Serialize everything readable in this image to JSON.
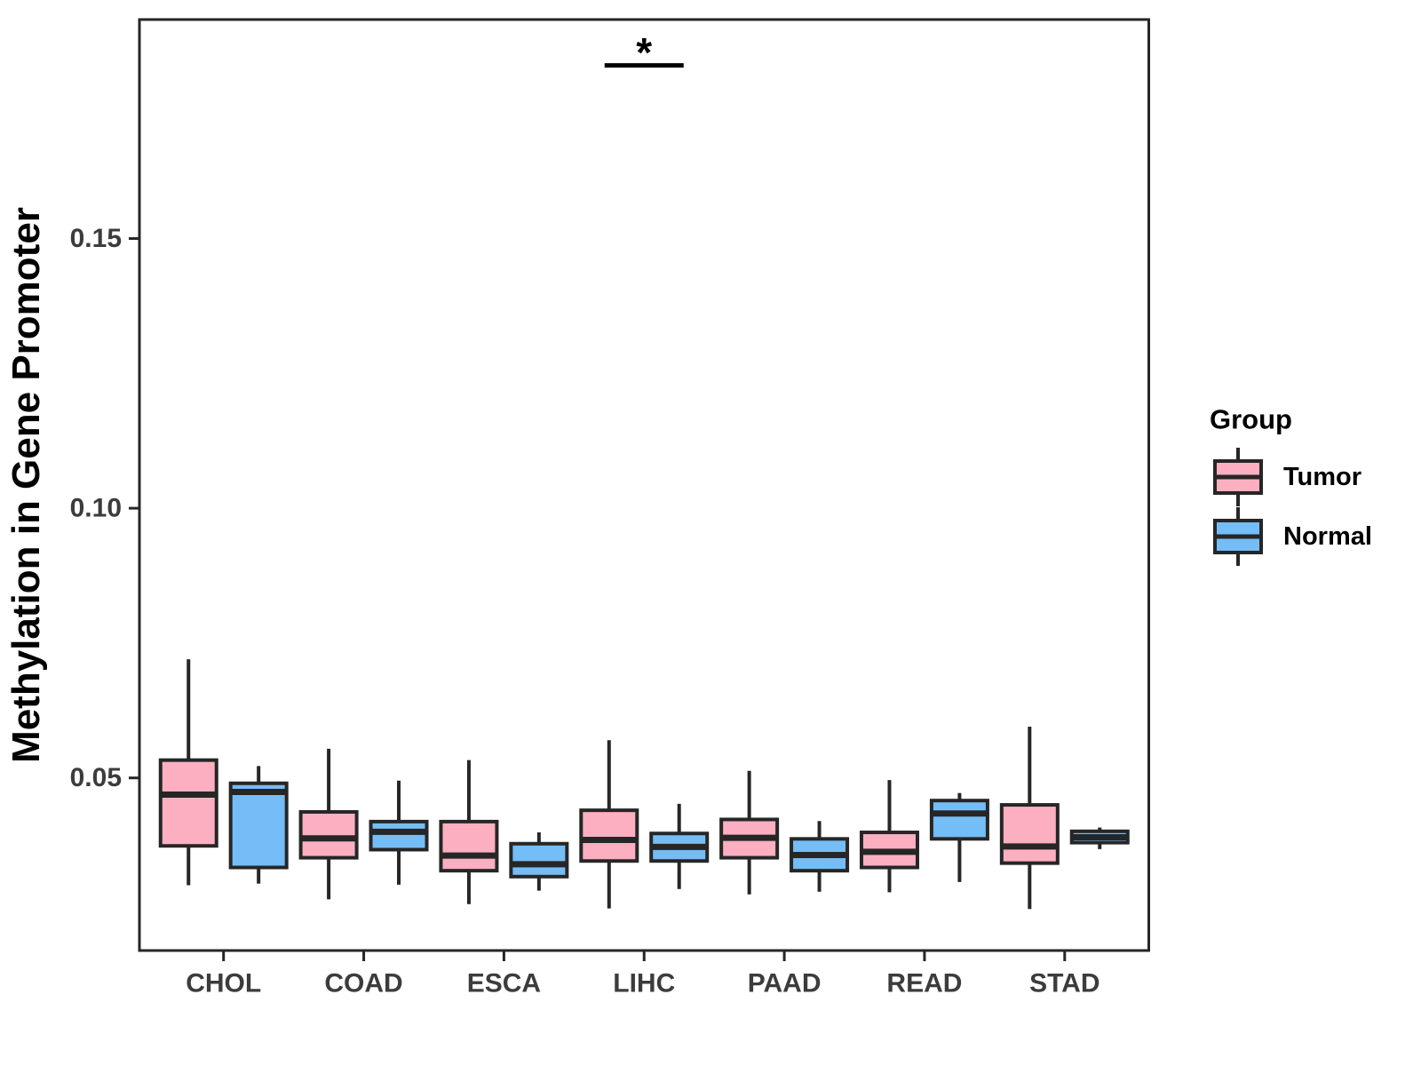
{
  "chart_data": {
    "type": "boxplot",
    "title": "",
    "xlabel": "",
    "ylabel": "Methylation in Gene Promoter",
    "categories": [
      "CHOL",
      "COAD",
      "ESCA",
      "LIHC",
      "PAAD",
      "READ",
      "STAD"
    ],
    "groups": [
      "Tumor",
      "Normal"
    ],
    "y_ticks": [
      0.05,
      0.1,
      0.15
    ],
    "y_tick_labels": [
      "0.05",
      "0.10",
      "0.15"
    ],
    "ylim": [
      0.018,
      0.1906
    ],
    "grid": "off",
    "legend_position": "right",
    "colors": {
      "Tumor": "#FBAFC0",
      "Normal": "#74BDF6",
      "line": "#262626",
      "axis_text": "#3C3C3C"
    },
    "series": [
      {
        "category": "CHOL",
        "group": "Tumor",
        "whislo": 0.0301,
        "q1": 0.0374,
        "med": 0.0469,
        "q3": 0.0533,
        "whishi": 0.072
      },
      {
        "category": "CHOL",
        "group": "Normal",
        "whislo": 0.0304,
        "q1": 0.0334,
        "med": 0.0474,
        "q3": 0.049,
        "whishi": 0.0522
      },
      {
        "category": "COAD",
        "group": "Tumor",
        "whislo": 0.0275,
        "q1": 0.0352,
        "med": 0.0388,
        "q3": 0.0437,
        "whishi": 0.0554
      },
      {
        "category": "COAD",
        "group": "Normal",
        "whislo": 0.0302,
        "q1": 0.0367,
        "med": 0.04,
        "q3": 0.0419,
        "whishi": 0.0495
      },
      {
        "category": "ESCA",
        "group": "Tumor",
        "whislo": 0.0266,
        "q1": 0.0328,
        "med": 0.0356,
        "q3": 0.0419,
        "whishi": 0.0533
      },
      {
        "category": "ESCA",
        "group": "Normal",
        "whislo": 0.0291,
        "q1": 0.0317,
        "med": 0.034,
        "q3": 0.0378,
        "whishi": 0.0399
      },
      {
        "category": "LIHC",
        "group": "Tumor",
        "whislo": 0.0258,
        "q1": 0.0346,
        "med": 0.0385,
        "q3": 0.044,
        "whishi": 0.057
      },
      {
        "category": "LIHC",
        "group": "Normal",
        "whislo": 0.0294,
        "q1": 0.0346,
        "med": 0.0372,
        "q3": 0.0397,
        "whishi": 0.0452
      },
      {
        "category": "PAAD",
        "group": "Tumor",
        "whislo": 0.0284,
        "q1": 0.0352,
        "med": 0.0389,
        "q3": 0.0423,
        "whishi": 0.0513
      },
      {
        "category": "PAAD",
        "group": "Normal",
        "whislo": 0.0289,
        "q1": 0.0328,
        "med": 0.0357,
        "q3": 0.0387,
        "whishi": 0.042
      },
      {
        "category": "READ",
        "group": "Tumor",
        "whislo": 0.0288,
        "q1": 0.0334,
        "med": 0.0363,
        "q3": 0.0399,
        "whishi": 0.0496
      },
      {
        "category": "READ",
        "group": "Normal",
        "whislo": 0.0307,
        "q1": 0.0387,
        "med": 0.0434,
        "q3": 0.0458,
        "whishi": 0.0472
      },
      {
        "category": "STAD",
        "group": "Tumor",
        "whislo": 0.0257,
        "q1": 0.0342,
        "med": 0.0373,
        "q3": 0.045,
        "whishi": 0.0595
      },
      {
        "category": "STAD",
        "group": "Normal",
        "whislo": 0.0368,
        "q1": 0.038,
        "med": 0.039,
        "q3": 0.0401,
        "whishi": 0.0408
      }
    ],
    "significance": {
      "category": "LIHC",
      "label": "*",
      "line_value": 0.1821,
      "label_value": 0.1845
    }
  },
  "legend": {
    "title": "Group",
    "items": [
      {
        "label": "Tumor",
        "color": "#FBAFC0"
      },
      {
        "label": "Normal",
        "color": "#74BDF6"
      }
    ]
  }
}
